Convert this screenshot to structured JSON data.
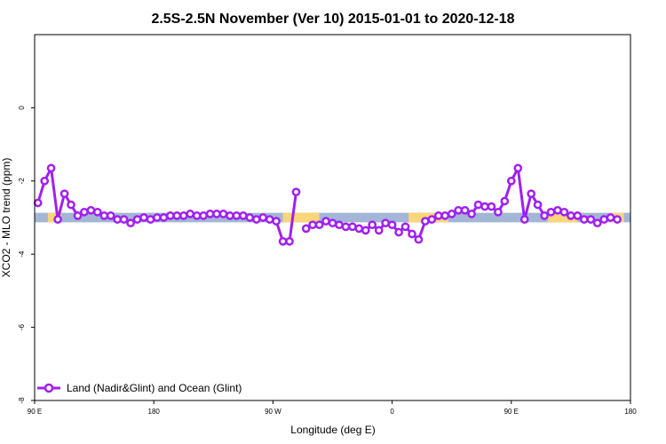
{
  "chart_data": {
    "type": "line",
    "title": "2.5S-2.5N November (Ver 10)   2015-01-01 to 2020-12-18",
    "xlabel": "Longitude (deg E)",
    "ylabel": "XCO2 - MLO trend (ppm)",
    "xlim": [
      90,
      450
    ],
    "ylim": [
      -8,
      2
    ],
    "x_ticks": [
      {
        "value": 90,
        "label": "90 E"
      },
      {
        "value": 162,
        "label": "180"
      },
      {
        "value": 234,
        "label": "90 W"
      },
      {
        "value": 306,
        "label": "0"
      },
      {
        "value": 378,
        "label": "90 E"
      },
      {
        "value": 450,
        "label": "180"
      }
    ],
    "y_ticks": [
      {
        "value": -8,
        "label": "-8"
      },
      {
        "value": -6,
        "label": "-6"
      },
      {
        "value": -4,
        "label": "-4"
      },
      {
        "value": -2,
        "label": "-2"
      },
      {
        "value": 0,
        "label": "0"
      }
    ],
    "surface_band": {
      "y_range": [
        -3.13,
        -2.87
      ],
      "ocean_color": "#a4b6d6",
      "land_color": "#fad67a",
      "land_segments": [
        [
          98,
          106
        ],
        [
          240,
          262
        ],
        [
          316,
          340
        ],
        [
          400,
          418
        ],
        [
          438,
          446
        ]
      ]
    },
    "series": [
      {
        "name": "Land (Nadir&Glint) and Ocean (Glint)",
        "color": "#a020f0",
        "segments": [
          [
            [
              92,
              -2.6
            ],
            [
              96,
              -2.0
            ],
            [
              100,
              -1.65
            ],
            [
              104,
              -3.05
            ],
            [
              108,
              -2.35
            ],
            [
              112,
              -2.65
            ],
            [
              116,
              -2.95
            ],
            [
              120,
              -2.85
            ],
            [
              124,
              -2.8
            ],
            [
              128,
              -2.85
            ],
            [
              132,
              -2.95
            ],
            [
              136,
              -2.95
            ],
            [
              140,
              -3.05
            ],
            [
              144,
              -3.05
            ],
            [
              148,
              -3.15
            ],
            [
              152,
              -3.05
            ],
            [
              156,
              -3.0
            ],
            [
              160,
              -3.05
            ],
            [
              164,
              -3.0
            ],
            [
              168,
              -3.0
            ],
            [
              172,
              -2.95
            ],
            [
              176,
              -2.95
            ],
            [
              180,
              -2.95
            ],
            [
              184,
              -2.9
            ],
            [
              188,
              -2.95
            ],
            [
              192,
              -2.95
            ],
            [
              196,
              -2.9
            ],
            [
              200,
              -2.9
            ],
            [
              204,
              -2.9
            ],
            [
              208,
              -2.95
            ],
            [
              212,
              -2.95
            ],
            [
              216,
              -2.95
            ],
            [
              220,
              -3.0
            ],
            [
              224,
              -3.05
            ],
            [
              228,
              -3.0
            ],
            [
              232,
              -3.05
            ],
            [
              236,
              -3.1
            ],
            [
              240,
              -3.65
            ],
            [
              244,
              -3.65
            ],
            [
              248,
              -2.3
            ]
          ],
          [
            [
              254,
              -3.3
            ],
            [
              258,
              -3.2
            ],
            [
              262,
              -3.2
            ],
            [
              266,
              -3.1
            ],
            [
              270,
              -3.15
            ],
            [
              274,
              -3.2
            ],
            [
              278,
              -3.25
            ],
            [
              282,
              -3.25
            ],
            [
              286,
              -3.3
            ],
            [
              290,
              -3.35
            ],
            [
              294,
              -3.2
            ],
            [
              298,
              -3.35
            ],
            [
              302,
              -3.15
            ],
            [
              306,
              -3.2
            ],
            [
              310,
              -3.4
            ],
            [
              314,
              -3.25
            ],
            [
              318,
              -3.45
            ],
            [
              322,
              -3.6
            ],
            [
              326,
              -3.1
            ],
            [
              330,
              -3.05
            ],
            [
              334,
              -2.95
            ],
            [
              338,
              -2.95
            ],
            [
              342,
              -2.9
            ],
            [
              346,
              -2.8
            ],
            [
              350,
              -2.8
            ],
            [
              354,
              -2.9
            ],
            [
              358,
              -2.65
            ],
            [
              362,
              -2.7
            ],
            [
              366,
              -2.7
            ],
            [
              370,
              -2.85
            ],
            [
              374,
              -2.55
            ],
            [
              378,
              -2.0
            ],
            [
              382,
              -1.65
            ],
            [
              386,
              -3.05
            ],
            [
              390,
              -2.35
            ],
            [
              394,
              -2.65
            ],
            [
              398,
              -2.95
            ],
            [
              402,
              -2.85
            ],
            [
              406,
              -2.8
            ],
            [
              410,
              -2.85
            ],
            [
              414,
              -2.95
            ],
            [
              418,
              -2.95
            ],
            [
              422,
              -3.05
            ],
            [
              426,
              -3.05
            ],
            [
              430,
              -3.15
            ],
            [
              434,
              -3.05
            ],
            [
              438,
              -3.0
            ],
            [
              442,
              -3.05
            ]
          ]
        ]
      }
    ],
    "legend": {
      "position": "bottom-left",
      "label": "Land (Nadir&Glint) and Ocean (Glint)"
    }
  }
}
